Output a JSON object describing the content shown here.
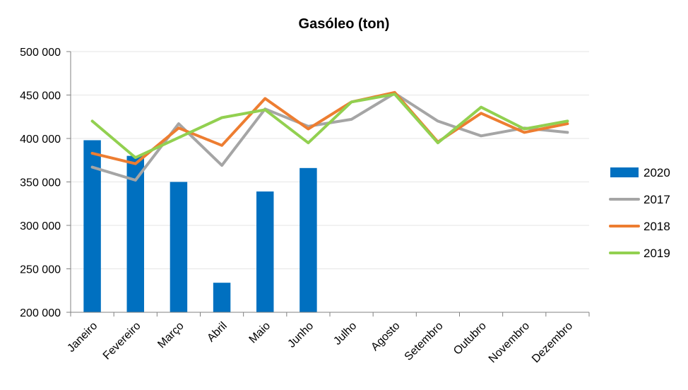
{
  "chart_data": {
    "type": "bar+line",
    "title": "Gasóleo (ton)",
    "xlabel": "",
    "ylabel": "",
    "ylim": [
      200000,
      500000
    ],
    "yticks": [
      200000,
      250000,
      300000,
      350000,
      400000,
      450000,
      500000
    ],
    "ytick_labels": [
      "200 000",
      "250 000",
      "300 000",
      "350 000",
      "400 000",
      "450 000",
      "500 000"
    ],
    "categories": [
      "Janeiro",
      "Fevereiro",
      "Março",
      "Abril",
      "Maio",
      "Junho",
      "Julho",
      "Agosto",
      "Setembro",
      "Outubro",
      "Novembro",
      "Dezembro"
    ],
    "grid": true,
    "legend_position": "right",
    "series": [
      {
        "name": "2020",
        "kind": "bar",
        "color": "#0070C0",
        "values": [
          398000,
          380000,
          350000,
          234000,
          339000,
          366000,
          null,
          null,
          null,
          null,
          null,
          null
        ]
      },
      {
        "name": "2017",
        "kind": "line",
        "color": "#A5A5A5",
        "values": [
          367000,
          352000,
          417000,
          369000,
          434000,
          414000,
          422000,
          452000,
          420000,
          403000,
          412000,
          407000
        ]
      },
      {
        "name": "2018",
        "kind": "line",
        "color": "#ED7D31",
        "values": [
          383000,
          371000,
          412000,
          392000,
          446000,
          411000,
          442000,
          453000,
          396000,
          429000,
          407000,
          417000
        ]
      },
      {
        "name": "2019",
        "kind": "line",
        "color": "#92D050",
        "values": [
          420000,
          378000,
          401000,
          424000,
          433000,
          395000,
          442000,
          451000,
          395000,
          436000,
          411000,
          420000
        ]
      }
    ]
  }
}
